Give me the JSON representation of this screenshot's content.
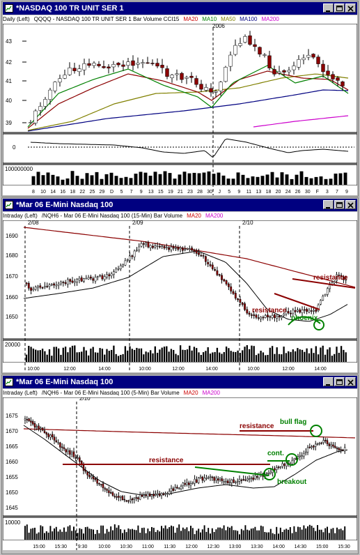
{
  "windows": [
    {
      "title": "*NASDAQ 100 TR UNIT SER 1",
      "info": [
        {
          "t": "Daily  (Left)",
          "c": "#000000"
        },
        {
          "t": "QQQQ - NASDAQ 100 TR UNIT SER 1  Bar  Volume  CCI15",
          "c": "#000000"
        },
        {
          "t": "MA20",
          "c": "#cc0000"
        },
        {
          "t": "MA10",
          "c": "#008000"
        },
        {
          "t": "MA50",
          "c": "#808000"
        },
        {
          "t": "MA100",
          "c": "#000080"
        },
        {
          "t": "MA200",
          "c": "#cc00cc"
        }
      ],
      "top_label": "2006",
      "price_ticks": [
        "43",
        "42",
        "41",
        "40",
        "39"
      ],
      "osc_tick": "0",
      "vol_label": "100000000",
      "x_ticks": [
        "8",
        "10",
        "14",
        "16",
        "18",
        "22",
        "25",
        "29",
        "D",
        "5",
        "7",
        "9",
        "13",
        "15",
        "19",
        "21",
        "23",
        "28",
        "30",
        "J",
        "5",
        "9",
        "11",
        "13",
        "18",
        "20",
        "24",
        "26",
        "30",
        "F",
        "3",
        "7",
        "9"
      ],
      "annotations": []
    },
    {
      "title": "*Mar 06  E-Mini Nasdaq 100",
      "info": [
        {
          "t": "Intraday  (Left)",
          "c": "#000000"
        },
        {
          "t": "/NQH6 - Mar 06  E-Mini Nasdaq 100 (15-Min)  Bar  Volume",
          "c": "#000000"
        },
        {
          "t": "MA20",
          "c": "#cc0000"
        },
        {
          "t": "MA200",
          "c": "#cc00cc"
        }
      ],
      "date_labels": [
        "2/08",
        "2/09",
        "2/10"
      ],
      "price_ticks": [
        "1690",
        "1680",
        "1670",
        "1660",
        "1650"
      ],
      "vol_label": "20000",
      "x_ticks": [
        "10:00",
        "12:00",
        "14:00",
        "10:00",
        "12:00",
        "14:00",
        "10:00",
        "12:00",
        "14:00"
      ],
      "annotations": [
        "resistance",
        "resistance",
        "phoenix"
      ]
    },
    {
      "title": "*Mar 06  E-Mini Nasdaq 100",
      "info": [
        {
          "t": "Intraday  (Left)",
          "c": "#000000"
        },
        {
          "t": "/NQH6 - Mar 06  E-Mini Nasdaq 100 (5-Min)  Bar  Volume",
          "c": "#000000"
        },
        {
          "t": "MA20",
          "c": "#cc0000"
        },
        {
          "t": "MA200",
          "c": "#cc00cc"
        }
      ],
      "date_labels": [
        "2/10"
      ],
      "price_ticks": [
        "1675",
        "1670",
        "1665",
        "1660",
        "1655",
        "1650",
        "1645"
      ],
      "vol_label": "10000",
      "x_ticks": [
        "15:00",
        "15:30",
        "9:30",
        "10:00",
        "10:30",
        "11:00",
        "11:30",
        "12:00",
        "12:30",
        "13:00",
        "13:30",
        "14:00",
        "14:30",
        "15:00",
        "15:30"
      ],
      "annotations": [
        "resistance",
        "resistance",
        "bull flag",
        "cont.",
        "breakout"
      ]
    }
  ]
}
